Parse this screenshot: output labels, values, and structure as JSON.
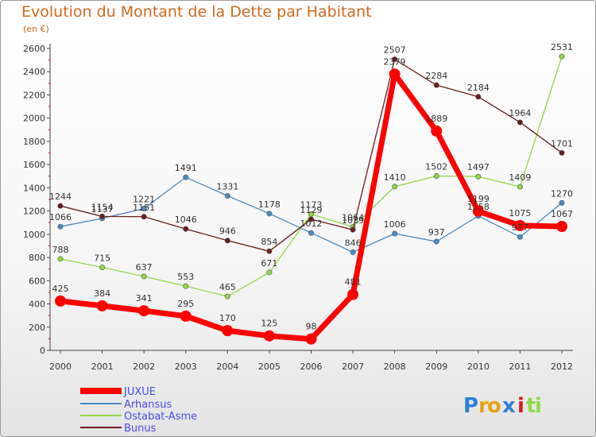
{
  "chart_data": {
    "type": "line",
    "title": "Evolution du Montant de la Dette par Habitant",
    "subtitle": "(en €)",
    "x": [
      "2000",
      "2001",
      "2002",
      "2003",
      "2004",
      "2005",
      "2006",
      "2007",
      "2008",
      "2009",
      "2010",
      "2011",
      "2012"
    ],
    "ylim": [
      0,
      2600
    ],
    "yticks": [
      0,
      200,
      400,
      600,
      800,
      1000,
      1200,
      1400,
      1600,
      1800,
      2000,
      2200,
      2400,
      2600
    ],
    "grid": false,
    "legend_position": "bottom-left",
    "series": [
      {
        "name": "JUXUE",
        "color": "#ff0000",
        "values": [
          425,
          384,
          341,
          295,
          170,
          125,
          98,
          481,
          2379,
          1889,
          1199,
          1075,
          1067
        ]
      },
      {
        "name": "Arhansus",
        "color": "#4a8bc4",
        "values": [
          1066,
          1137,
          1221,
          1491,
          1331,
          1178,
          1012,
          846,
          1006,
          937,
          1158,
          977,
          1270
        ]
      },
      {
        "name": "Ostabat-Asme",
        "color": "#8fd84a",
        "values": [
          788,
          715,
          637,
          553,
          465,
          671,
          1173,
          1064,
          1410,
          1502,
          1497,
          1409,
          2531
        ]
      },
      {
        "name": "Bunus",
        "color": "#6b1c1c",
        "values": [
          1244,
          1154,
          1151,
          1046,
          946,
          854,
          1129,
          1039,
          2507,
          2284,
          2184,
          1964,
          1701
        ]
      }
    ]
  },
  "brand": {
    "logo_letters": [
      "P",
      "r",
      "o",
      "x",
      "i",
      "t",
      "i"
    ],
    "logo_colors": [
      "#2f7fd8",
      "#e8a21c",
      "#e8a21c",
      "#2f7fd8",
      "#d81c1c",
      "#8fd84a",
      "#8fd84a"
    ]
  }
}
